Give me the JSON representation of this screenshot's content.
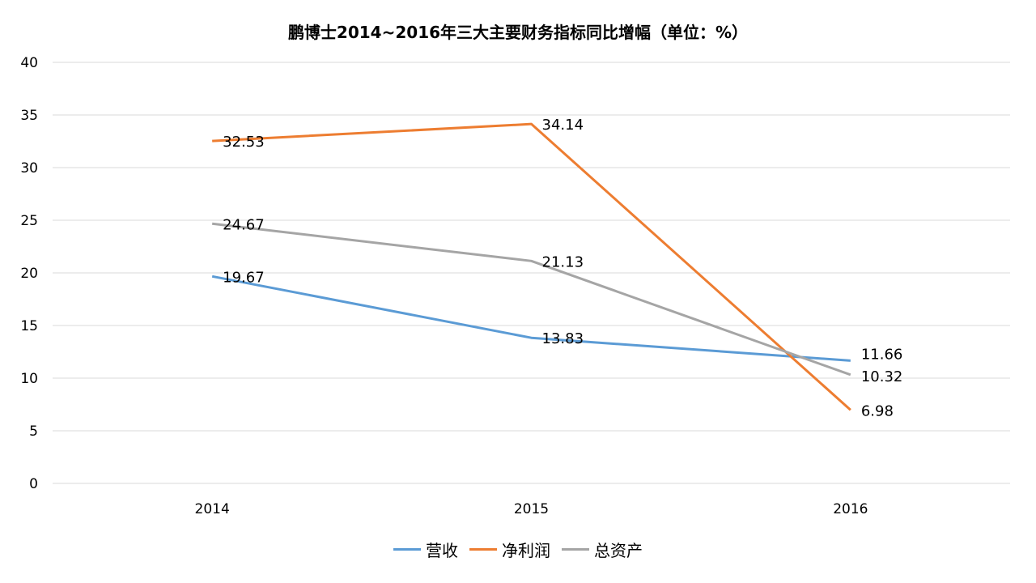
{
  "chart_data": {
    "type": "line",
    "title": "鹏博士2014~2016年三大主要财务指标同比增幅（单位：%）",
    "categories": [
      "2014",
      "2015",
      "2016"
    ],
    "ylim": [
      0,
      40
    ],
    "yticks": [
      "0",
      "5",
      "10",
      "15",
      "20",
      "25",
      "30",
      "35",
      "40"
    ],
    "grid": true,
    "legend_position": "bottom",
    "series": [
      {
        "name": "营收",
        "color": "#5b9bd5",
        "values": [
          19.67,
          13.83,
          11.66
        ],
        "labels": [
          "19.67",
          "13.83",
          "11.66"
        ]
      },
      {
        "name": "净利润",
        "color": "#ed7d31",
        "values": [
          32.53,
          34.14,
          6.98
        ],
        "labels": [
          "32.53",
          "34.14",
          "6.98"
        ]
      },
      {
        "name": "总资产",
        "color": "#a5a5a5",
        "values": [
          24.67,
          21.13,
          10.32
        ],
        "labels": [
          "24.67",
          "21.13",
          "10.32"
        ]
      }
    ]
  }
}
